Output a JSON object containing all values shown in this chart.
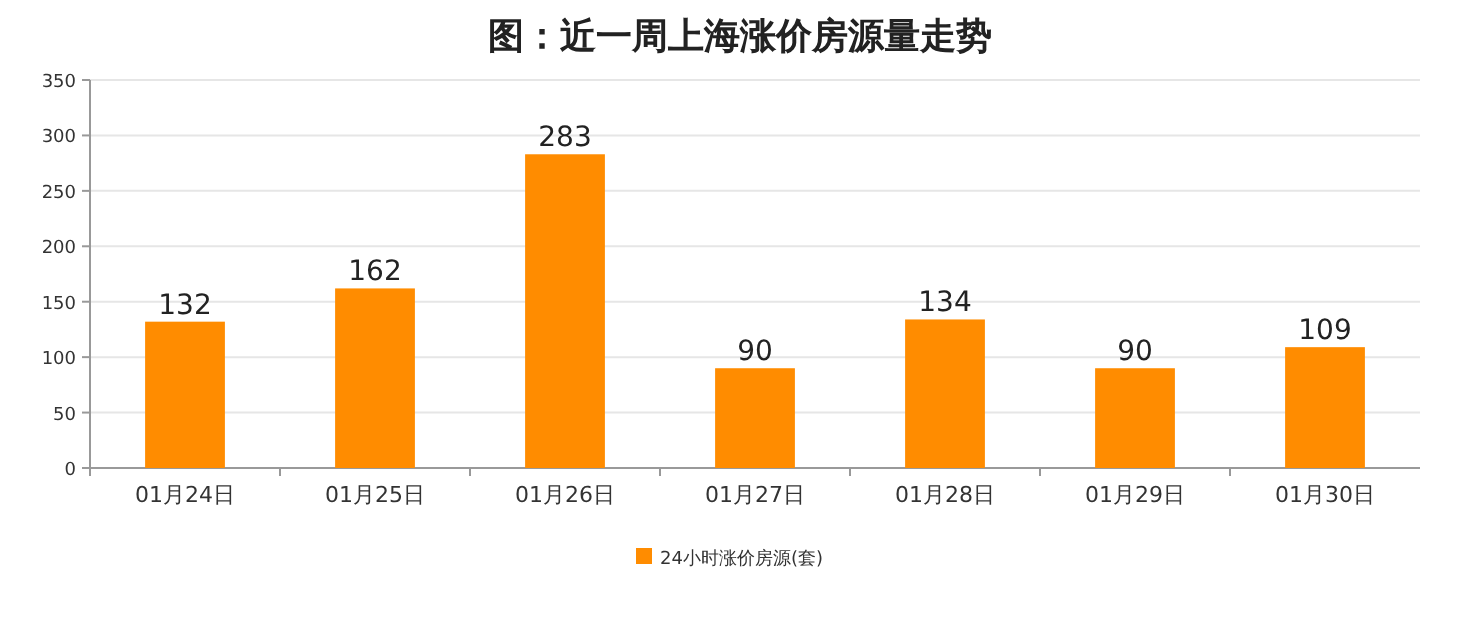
{
  "chart_data": {
    "type": "bar",
    "title": "图：近一周上海涨价房源量走势",
    "categories": [
      "01月24日",
      "01月25日",
      "01月26日",
      "01月27日",
      "01月28日",
      "01月29日",
      "01月30日"
    ],
    "series": [
      {
        "name": "24小时涨价房源(套)",
        "color": "#ff8c00",
        "values": [
          132,
          162,
          283,
          90,
          134,
          90,
          109
        ]
      }
    ],
    "ylim": [
      0,
      350
    ],
    "yticks": [
      0,
      50,
      100,
      150,
      200,
      250,
      300,
      350
    ],
    "grid": "y",
    "legend": "bottom",
    "data_labels": true
  }
}
